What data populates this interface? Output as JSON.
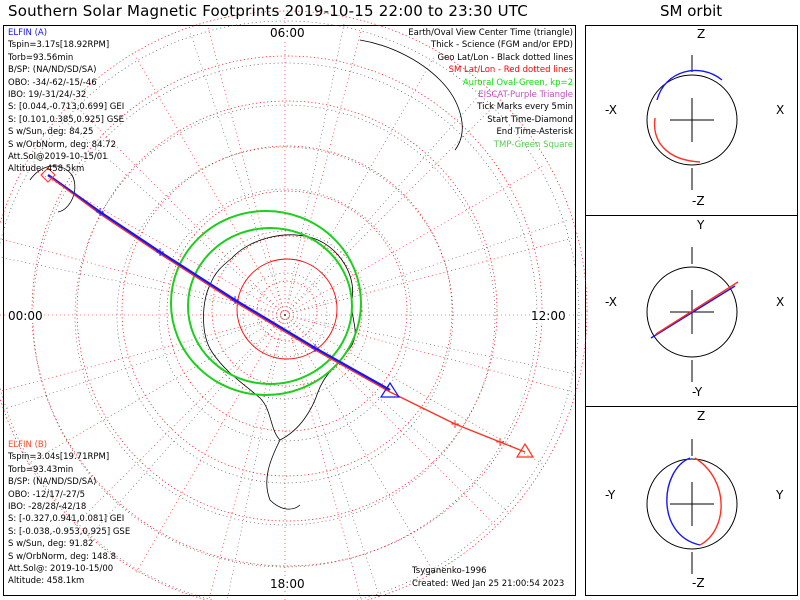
{
  "title": "Southern Solar Magnetic Footprints 2019-10-15 22:00 to 23:30 UTC",
  "orbit_title": "SM orbit",
  "clock_labels": {
    "top": "06:00",
    "left": "00:00",
    "right": "12:00",
    "bottom": "18:00"
  },
  "elfin_a": {
    "name": "ELFIN (A)",
    "color": "#1515ff",
    "lines": [
      "Tspin=3.17s[18.92RPM]",
      "Torb=93.56min",
      "B/SP: (NA/ND/SD/SA)",
      "OBO: -34/-62/-15/-46",
      "IBO: 19/-31/24/-32",
      "S: [0.044,-0.713,0.699] GEI",
      "S: [0.101,0.385,0.925] GSE",
      "S w/Sun, deg: 84.25",
      "S w/OrbNorm, deg: 84.72",
      "Att.Sol@2019-10-15/01",
      "Altitude: 458.5km"
    ]
  },
  "elfin_b": {
    "name": "ELFIN (B)",
    "color": "#ff4a2a",
    "lines": [
      "Tspin=3.04s[19.71RPM]",
      "Torb=93.43min",
      "B/SP: (NA/ND/SD/SA)",
      "OBO: -12/17/-27/5",
      "IBO: -28/28/-42/18",
      "S: [-0.327,0.941,0.081] GEI",
      "S: [-0.038,-0.953,0.925] GSE",
      "S w/Sun, deg: 91.82",
      "S w/OrbNorm, deg: 148.8",
      "Att.Sol@: 2019-10-15/00",
      "Altitude: 458.1km"
    ]
  },
  "legend": [
    {
      "text": "Earth/Oval View Center Time (triangle)",
      "color": "#000000"
    },
    {
      "text": "Thick - Science (FGM and/or EPD)",
      "color": "#000000"
    },
    {
      "text": "Geo Lat/Lon - Black dotted lines",
      "color": "#000000"
    },
    {
      "text": "SM Lat/Lon - Red dotted lines",
      "color": "#ff0000"
    },
    {
      "text": "Auroral Oval-Green, kp=2",
      "color": "#11dd11"
    },
    {
      "text": "EISCAT-Purple Triangle",
      "color": "#c050c0"
    },
    {
      "text": "Tick Marks every 5min",
      "color": "#000000"
    },
    {
      "text": "Start Time-Diamond",
      "color": "#000000"
    },
    {
      "text": "End Time-Asterisk",
      "color": "#000000"
    },
    {
      "text": "TMP-Green Square",
      "color": "#55cc55"
    }
  ],
  "credit": "Tsyganenko-1996",
  "created": "Created: Wed Jan 25 21:00:54 2023",
  "orbit_panels": [
    {
      "top": "Z",
      "bottom": "-Z",
      "left": "-X",
      "right": "X"
    },
    {
      "top": "Y",
      "bottom": "-Y",
      "left": "-X",
      "right": "X"
    },
    {
      "top": "Z",
      "bottom": "-Z",
      "left": "-Y",
      "right": "Y"
    }
  ]
}
